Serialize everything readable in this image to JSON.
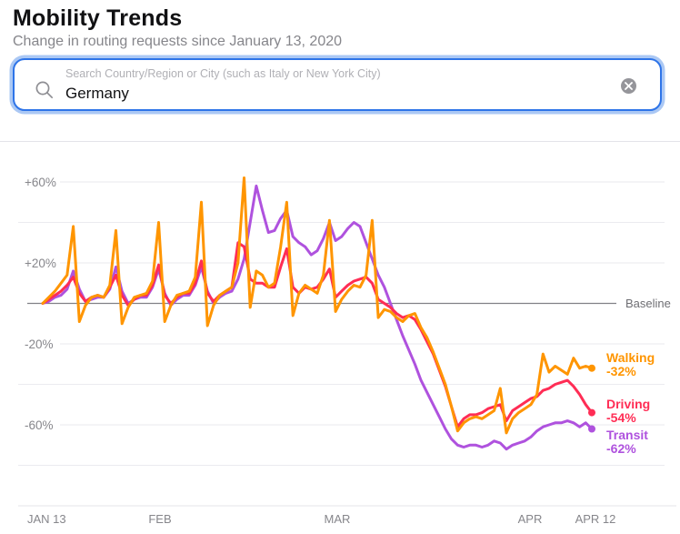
{
  "header": {
    "title": "Mobility Trends",
    "subtitle": "Change in routing requests since January 13, 2020"
  },
  "search": {
    "placeholder": "Search Country/Region or City (such as Italy or New York City)",
    "value": "Germany"
  },
  "chart_data": {
    "type": "line",
    "title": "Change in routing requests since January 13, 2020",
    "region": "Germany",
    "x_axis": {
      "unit": "day",
      "start_date": "2020-01-13",
      "end_date": "2020-04-12",
      "tick_labels": [
        "JAN 13",
        "FEB",
        "MAR",
        "APR",
        "APR 12"
      ]
    },
    "y_axis": {
      "tick_labels": [
        "+60%",
        "+20%",
        "-20%",
        "-60%"
      ],
      "tick_values": [
        60,
        20,
        -20,
        -60
      ],
      "minor_gridline_values": [
        40,
        -40,
        -80
      ],
      "range": [
        -100,
        80
      ],
      "baseline_value": 0,
      "baseline_label": "Baseline",
      "grid": true
    },
    "legend_position": "right-of-line-ends",
    "series": [
      {
        "name": "Walking",
        "color": "#FF9500",
        "end_label": "Walking",
        "end_value_label": "-32%",
        "values": [
          0,
          3,
          6,
          10,
          14,
          38,
          -9,
          -1,
          3,
          4,
          3,
          9,
          36,
          -10,
          -2,
          3,
          4,
          5,
          11,
          40,
          -9,
          -1,
          4,
          5,
          6,
          13,
          50,
          -11,
          -1,
          4,
          6,
          8,
          20,
          62,
          -2,
          16,
          14,
          8,
          10,
          28,
          50,
          -6,
          5,
          9,
          7,
          5,
          14,
          41,
          -4,
          2,
          6,
          9,
          8,
          14,
          41,
          -7,
          -3,
          -4,
          -7,
          -9,
          -6,
          -5,
          -12,
          -17,
          -24,
          -32,
          -40,
          -51,
          -63,
          -59,
          -57,
          -56,
          -57,
          -55,
          -53,
          -42,
          -64,
          -57,
          -54,
          -52,
          -50,
          -45,
          -25,
          -34,
          -31,
          -33,
          -35,
          -27,
          -32,
          -31,
          -32
        ]
      },
      {
        "name": "Driving",
        "color": "#FF2D55",
        "end_label": "Driving",
        "end_value_label": "-54%",
        "values": [
          0,
          2,
          4,
          6,
          9,
          13,
          5,
          1,
          3,
          4,
          3,
          8,
          14,
          4,
          -1,
          2,
          4,
          4,
          9,
          19,
          4,
          0,
          3,
          5,
          5,
          10,
          21,
          5,
          1,
          4,
          6,
          8,
          30,
          28,
          12,
          10,
          10,
          8,
          8,
          18,
          27,
          8,
          5,
          8,
          7,
          8,
          12,
          17,
          3,
          6,
          9,
          11,
          12,
          13,
          10,
          2,
          0,
          -2,
          -5,
          -7,
          -6,
          -8,
          -13,
          -19,
          -25,
          -33,
          -41,
          -51,
          -61,
          -57,
          -55,
          -55,
          -54,
          -52,
          -51,
          -50,
          -58,
          -53,
          -51,
          -49,
          -47,
          -46,
          -43,
          -42,
          -40,
          -39,
          -38,
          -41,
          -45,
          -50,
          -54
        ]
      },
      {
        "name": "Transit",
        "color": "#AF52DE",
        "end_label": "Transit",
        "end_value_label": "-62%",
        "values": [
          0,
          1,
          3,
          4,
          7,
          16,
          7,
          1,
          2,
          3,
          3,
          7,
          18,
          6,
          0,
          2,
          3,
          3,
          8,
          17,
          5,
          -1,
          2,
          4,
          4,
          9,
          18,
          6,
          0,
          3,
          5,
          6,
          12,
          22,
          40,
          58,
          46,
          35,
          36,
          42,
          46,
          33,
          30,
          28,
          24,
          26,
          32,
          40,
          31,
          33,
          37,
          40,
          38,
          30,
          22,
          14,
          8,
          0,
          -8,
          -16,
          -23,
          -30,
          -38,
          -44,
          -50,
          -56,
          -62,
          -67,
          -70,
          -71,
          -70,
          -70,
          -71,
          -70,
          -68,
          -69,
          -72,
          -70,
          -69,
          -68,
          -66,
          -63,
          -61,
          -60,
          -59,
          -59,
          -58,
          -59,
          -61,
          -59,
          -62
        ]
      }
    ]
  }
}
